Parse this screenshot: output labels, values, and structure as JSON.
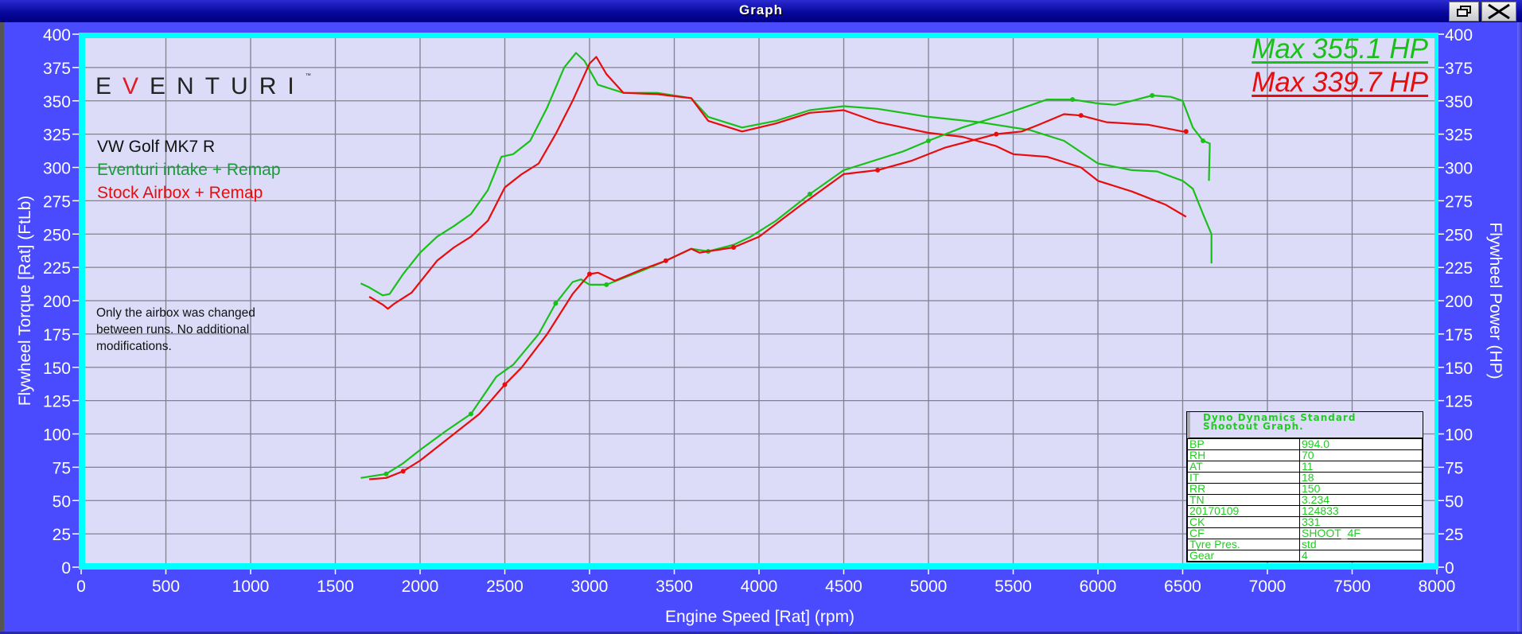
{
  "window": {
    "title": "Graph",
    "restore_icon": "restore-window-icon",
    "close_icon": "close-icon"
  },
  "logo": {
    "text": "EVENTURI",
    "tm": "™"
  },
  "annotations": {
    "vehicle": "VW Golf MK7 R",
    "legend_green": "Eventuri intake + Remap",
    "legend_red": "Stock Airbox + Remap",
    "note_lines": [
      "Only the airbox was changed",
      "between runs. No additional",
      "modifications."
    ],
    "max_green": "Max 355.1 HP",
    "max_red": "Max 339.7 HP"
  },
  "colors": {
    "green": "#18c018",
    "red": "#e80c0c",
    "plot_bg": "#dcdcf8",
    "frame": "#4a4aff",
    "border": "#00ffff",
    "grid": "#808090"
  },
  "info_table": {
    "title_lines": [
      "Dyno Dynamics Standard",
      "Shootout Graph."
    ],
    "rows": [
      [
        "BP",
        "994.0"
      ],
      [
        "RH",
        "70"
      ],
      [
        "AT",
        "11"
      ],
      [
        "IT",
        "18"
      ],
      [
        "RR",
        "150"
      ],
      [
        "TN",
        "3.234"
      ],
      [
        "20170109",
        "124833"
      ],
      [
        "CK",
        "331"
      ],
      [
        "CF",
        "SHOOT_4F"
      ],
      [
        "Tyre Pres.",
        "std"
      ],
      [
        "Gear",
        "4"
      ]
    ]
  },
  "chart_data": {
    "type": "line",
    "xlabel": "Engine Speed [Rat] (rpm)",
    "ylabel_left": "Flywheel Torque [Rat] (FtLb)",
    "ylabel_right": "Flywheel Power (HP)",
    "xlim": [
      0,
      8000
    ],
    "ylim": [
      0,
      400
    ],
    "x_ticks": [
      "0",
      "500",
      "1000",
      "1500",
      "2000",
      "2500",
      "3000",
      "3500",
      "4000",
      "4500",
      "5000",
      "5500",
      "6000",
      "6500",
      "7000",
      "7500",
      "8000"
    ],
    "y_ticks": [
      "0",
      "25",
      "50",
      "75",
      "100",
      "125",
      "150",
      "175",
      "200",
      "225",
      "250",
      "275",
      "300",
      "325",
      "350",
      "375",
      "400"
    ],
    "grid": true,
    "series": [
      {
        "name": "Eventuri intake + Remap",
        "quantity": "torque",
        "color": "#18c018",
        "points": [
          [
            1650,
            213
          ],
          [
            1700,
            210
          ],
          [
            1780,
            204
          ],
          [
            1820,
            205
          ],
          [
            1900,
            220
          ],
          [
            2000,
            236
          ],
          [
            2100,
            248
          ],
          [
            2200,
            256
          ],
          [
            2300,
            265
          ],
          [
            2400,
            283
          ],
          [
            2480,
            308
          ],
          [
            2550,
            310
          ],
          [
            2650,
            320
          ],
          [
            2750,
            345
          ],
          [
            2850,
            375
          ],
          [
            2920,
            386
          ],
          [
            2970,
            380
          ],
          [
            3050,
            362
          ],
          [
            3200,
            356
          ],
          [
            3400,
            356
          ],
          [
            3600,
            352
          ],
          [
            3700,
            338
          ],
          [
            3900,
            330
          ],
          [
            4100,
            335
          ],
          [
            4300,
            343
          ],
          [
            4500,
            346
          ],
          [
            4700,
            344
          ],
          [
            5000,
            338
          ],
          [
            5300,
            334
          ],
          [
            5600,
            328
          ],
          [
            5800,
            320
          ],
          [
            6000,
            303
          ],
          [
            6200,
            298
          ],
          [
            6350,
            297
          ],
          [
            6500,
            290
          ],
          [
            6560,
            284
          ],
          [
            6620,
            265
          ],
          [
            6670,
            250
          ],
          [
            6670,
            228
          ]
        ]
      },
      {
        "name": "Stock Airbox + Remap",
        "quantity": "torque",
        "color": "#e80c0c",
        "points": [
          [
            1700,
            203
          ],
          [
            1780,
            197
          ],
          [
            1810,
            194
          ],
          [
            1850,
            198
          ],
          [
            1950,
            206
          ],
          [
            2100,
            230
          ],
          [
            2200,
            240
          ],
          [
            2300,
            248
          ],
          [
            2400,
            260
          ],
          [
            2500,
            285
          ],
          [
            2600,
            295
          ],
          [
            2700,
            303
          ],
          [
            2800,
            325
          ],
          [
            2900,
            350
          ],
          [
            3000,
            378
          ],
          [
            3040,
            383
          ],
          [
            3100,
            370
          ],
          [
            3200,
            356
          ],
          [
            3400,
            355
          ],
          [
            3600,
            352
          ],
          [
            3700,
            335
          ],
          [
            3900,
            327
          ],
          [
            4100,
            333
          ],
          [
            4300,
            341
          ],
          [
            4500,
            343
          ],
          [
            4700,
            334
          ],
          [
            5000,
            326
          ],
          [
            5200,
            323
          ],
          [
            5400,
            316
          ],
          [
            5500,
            310
          ],
          [
            5700,
            308
          ],
          [
            5900,
            300
          ],
          [
            6000,
            290
          ],
          [
            6200,
            282
          ],
          [
            6400,
            272
          ],
          [
            6520,
            263
          ]
        ]
      },
      {
        "name": "Eventuri intake + Remap",
        "quantity": "power",
        "color": "#18c018",
        "points": [
          [
            1650,
            67
          ],
          [
            1750,
            69
          ],
          [
            1800,
            70
          ],
          [
            1900,
            78
          ],
          [
            2000,
            88
          ],
          [
            2150,
            102
          ],
          [
            2300,
            115
          ],
          [
            2450,
            143
          ],
          [
            2550,
            152
          ],
          [
            2700,
            175
          ],
          [
            2800,
            198
          ],
          [
            2900,
            214
          ],
          [
            2950,
            216
          ],
          [
            3000,
            212
          ],
          [
            3100,
            212
          ],
          [
            3300,
            222
          ],
          [
            3450,
            230
          ],
          [
            3600,
            239
          ],
          [
            3700,
            237
          ],
          [
            3850,
            242
          ],
          [
            3950,
            248
          ],
          [
            4100,
            260
          ],
          [
            4300,
            280
          ],
          [
            4500,
            298
          ],
          [
            4700,
            306
          ],
          [
            4850,
            312
          ],
          [
            5000,
            320
          ],
          [
            5200,
            330
          ],
          [
            5450,
            340
          ],
          [
            5700,
            351
          ],
          [
            5850,
            351
          ],
          [
            6000,
            348
          ],
          [
            6100,
            347
          ],
          [
            6200,
            350
          ],
          [
            6320,
            354
          ],
          [
            6430,
            353
          ],
          [
            6500,
            350
          ],
          [
            6560,
            330
          ],
          [
            6620,
            320
          ],
          [
            6660,
            318
          ],
          [
            6655,
            290
          ]
        ]
      },
      {
        "name": "Stock Airbox + Remap",
        "quantity": "power",
        "color": "#e80c0c",
        "points": [
          [
            1700,
            66
          ],
          [
            1800,
            67
          ],
          [
            1900,
            72
          ],
          [
            2000,
            80
          ],
          [
            2200,
            100
          ],
          [
            2350,
            115
          ],
          [
            2500,
            137
          ],
          [
            2600,
            150
          ],
          [
            2750,
            175
          ],
          [
            2900,
            205
          ],
          [
            3000,
            220
          ],
          [
            3050,
            221
          ],
          [
            3150,
            215
          ],
          [
            3300,
            223
          ],
          [
            3450,
            230
          ],
          [
            3550,
            236
          ],
          [
            3600,
            239
          ],
          [
            3650,
            236
          ],
          [
            3850,
            240
          ],
          [
            4000,
            248
          ],
          [
            4250,
            272
          ],
          [
            4500,
            295
          ],
          [
            4700,
            298
          ],
          [
            4900,
            305
          ],
          [
            5100,
            315
          ],
          [
            5250,
            320
          ],
          [
            5400,
            325
          ],
          [
            5550,
            327
          ],
          [
            5650,
            332
          ],
          [
            5800,
            340
          ],
          [
            5900,
            339
          ],
          [
            6050,
            334
          ],
          [
            6300,
            332
          ],
          [
            6500,
            327
          ],
          [
            6520,
            327
          ]
        ]
      }
    ]
  }
}
